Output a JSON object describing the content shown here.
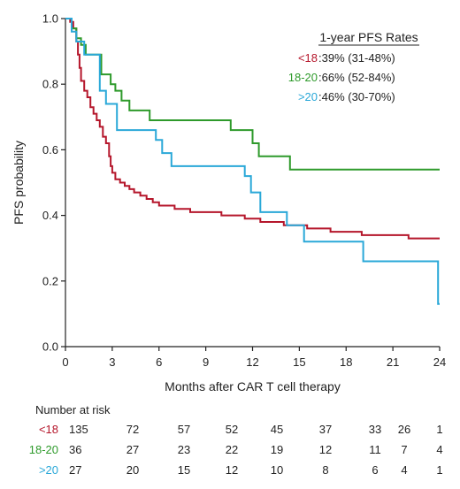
{
  "chart_data": {
    "type": "line",
    "title": "",
    "xlabel": "Months after CAR T cell therapy",
    "ylabel": "PFS probability",
    "xlim": [
      0,
      24
    ],
    "ylim": [
      0,
      1.0
    ],
    "xticks": [
      0,
      3,
      6,
      9,
      12,
      15,
      18,
      21,
      24
    ],
    "yticks": [
      0.0,
      0.2,
      0.4,
      0.6,
      0.8,
      1.0
    ],
    "xtick_labels": [
      "0",
      "3",
      "6",
      "9",
      "12",
      "15",
      "18",
      "21",
      "24"
    ],
    "ytick_labels": [
      "0.0",
      "0.2",
      "0.4",
      "0.6",
      "0.8",
      "1.0"
    ],
    "legend": {
      "title": "1-year PFS Rates",
      "placement": "top-right"
    },
    "series": [
      {
        "name": "<18",
        "rate": ":39% (31-48%)",
        "color": "#b5162b",
        "points": [
          [
            0,
            1.0
          ],
          [
            0.3,
            0.99
          ],
          [
            0.5,
            0.97
          ],
          [
            0.7,
            0.93
          ],
          [
            0.8,
            0.89
          ],
          [
            0.9,
            0.85
          ],
          [
            1.0,
            0.81
          ],
          [
            1.2,
            0.78
          ],
          [
            1.4,
            0.76
          ],
          [
            1.6,
            0.73
          ],
          [
            1.8,
            0.71
          ],
          [
            2.0,
            0.69
          ],
          [
            2.2,
            0.67
          ],
          [
            2.4,
            0.64
          ],
          [
            2.6,
            0.62
          ],
          [
            2.8,
            0.58
          ],
          [
            2.9,
            0.55
          ],
          [
            3.0,
            0.53
          ],
          [
            3.2,
            0.51
          ],
          [
            3.5,
            0.5
          ],
          [
            3.8,
            0.49
          ],
          [
            4.1,
            0.48
          ],
          [
            4.4,
            0.47
          ],
          [
            4.8,
            0.46
          ],
          [
            5.2,
            0.45
          ],
          [
            5.6,
            0.44
          ],
          [
            6.0,
            0.43
          ],
          [
            7.0,
            0.42
          ],
          [
            8.0,
            0.41
          ],
          [
            9.5,
            0.41
          ],
          [
            10.0,
            0.4
          ],
          [
            11.5,
            0.39
          ],
          [
            12.0,
            0.39
          ],
          [
            12.5,
            0.38
          ],
          [
            14.0,
            0.37
          ],
          [
            15.5,
            0.36
          ],
          [
            17.0,
            0.35
          ],
          [
            18.5,
            0.35
          ],
          [
            19.0,
            0.34
          ],
          [
            20.5,
            0.34
          ],
          [
            22.0,
            0.33
          ],
          [
            24.0,
            0.33
          ]
        ]
      },
      {
        "name": "18-20",
        "rate": ":66% (52-84%)",
        "color": "#2e9a2b",
        "points": [
          [
            0,
            1.0
          ],
          [
            0.4,
            0.97
          ],
          [
            0.7,
            0.94
          ],
          [
            1.0,
            0.92
          ],
          [
            1.3,
            0.89
          ],
          [
            2.3,
            0.83
          ],
          [
            2.9,
            0.8
          ],
          [
            3.2,
            0.78
          ],
          [
            3.6,
            0.75
          ],
          [
            4.1,
            0.72
          ],
          [
            5.4,
            0.69
          ],
          [
            10.6,
            0.66
          ],
          [
            12.0,
            0.62
          ],
          [
            12.4,
            0.58
          ],
          [
            14.4,
            0.54
          ],
          [
            24.0,
            0.54
          ]
        ]
      },
      {
        "name": ">20",
        "rate": ":46% (30-70%)",
        "color": "#2aa8d8",
        "points": [
          [
            0,
            1.0
          ],
          [
            0.4,
            0.96
          ],
          [
            0.7,
            0.93
          ],
          [
            1.2,
            0.89
          ],
          [
            2.2,
            0.78
          ],
          [
            2.6,
            0.74
          ],
          [
            3.3,
            0.66
          ],
          [
            5.8,
            0.63
          ],
          [
            6.2,
            0.59
          ],
          [
            6.8,
            0.55
          ],
          [
            11.5,
            0.52
          ],
          [
            11.9,
            0.47
          ],
          [
            12.5,
            0.41
          ],
          [
            14.2,
            0.37
          ],
          [
            15.3,
            0.32
          ],
          [
            19.1,
            0.26
          ],
          [
            23.8,
            0.26
          ],
          [
            23.9,
            0.13
          ],
          [
            24.0,
            0.13
          ]
        ]
      }
    ]
  },
  "risk_table": {
    "title": "Number at risk",
    "rows": [
      {
        "label": "<18",
        "color": "#b5162b",
        "values": [
          135,
          72,
          57,
          52,
          45,
          37,
          33,
          26,
          1
        ]
      },
      {
        "label": "18-20",
        "color": "#2e9a2b",
        "values": [
          36,
          27,
          23,
          22,
          19,
          12,
          11,
          7,
          4
        ]
      },
      {
        "label": ">20",
        "color": "#2aa8d8",
        "values": [
          27,
          20,
          15,
          12,
          10,
          8,
          6,
          4,
          1
        ]
      }
    ]
  }
}
